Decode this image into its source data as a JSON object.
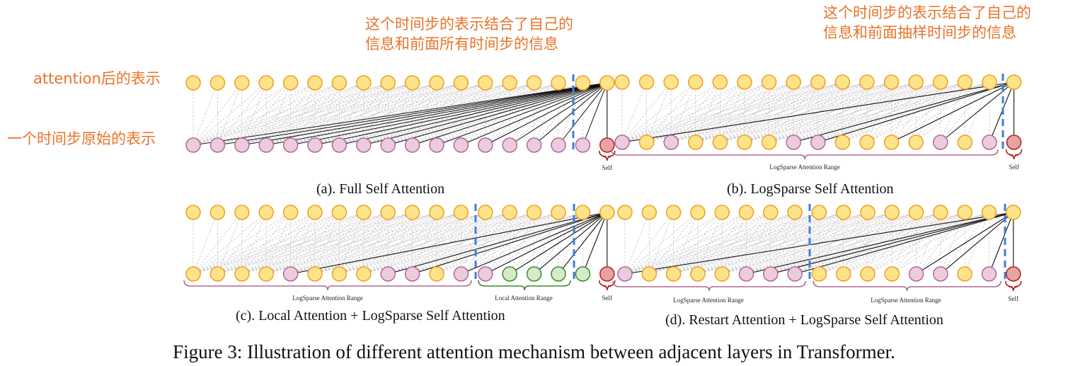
{
  "annotations": {
    "after_attention": "attention后的表示",
    "original": "一个时间步原始的表示",
    "full_note_line1": "这个时间步的表示结合了自己的",
    "full_note_line2": "信息和前面所有时间步的信息",
    "sparse_note_line1": "这个时间步的表示结合了自己的",
    "sparse_note_line2": "信息和前面抽样时间步的信息"
  },
  "panels": {
    "a": {
      "caption": "(a). Full Self Attention",
      "self_label": "Self"
    },
    "b": {
      "caption": "(b). LogSparse Self Attention",
      "range_label": "LogSparse Attention Range",
      "self_label": "Self"
    },
    "c": {
      "caption": "(c). Local Attention + LogSparse Self Attention",
      "range_label": "LogSparse Attention Range",
      "local_label": "Local Attention Range",
      "self_label": "Self"
    },
    "d": {
      "caption": "(d). Restart Attention + LogSparse Self Attention",
      "range_label_1": "LogSparse Attention Range",
      "range_label_2": "LogSparse Attention Range",
      "self_label": "Self"
    }
  },
  "figure_caption": "Figure 3: Illustration of different attention mechanism between adjacent layers in Transformer.",
  "colors": {
    "orange_fill": "#FDE38A",
    "orange_stroke": "#F0A020",
    "pink_fill": "#EBCCDF",
    "pink_stroke": "#B06A95",
    "green_fill": "#D6EAC9",
    "green_stroke": "#3C8A2E",
    "self_fill": "#E6A3A1",
    "self_stroke": "#B02020",
    "divider": "#3D7FD8",
    "brace_pink": "#B06A95",
    "brace_green": "#3C8A2E",
    "brace_red": "#B02020"
  }
}
